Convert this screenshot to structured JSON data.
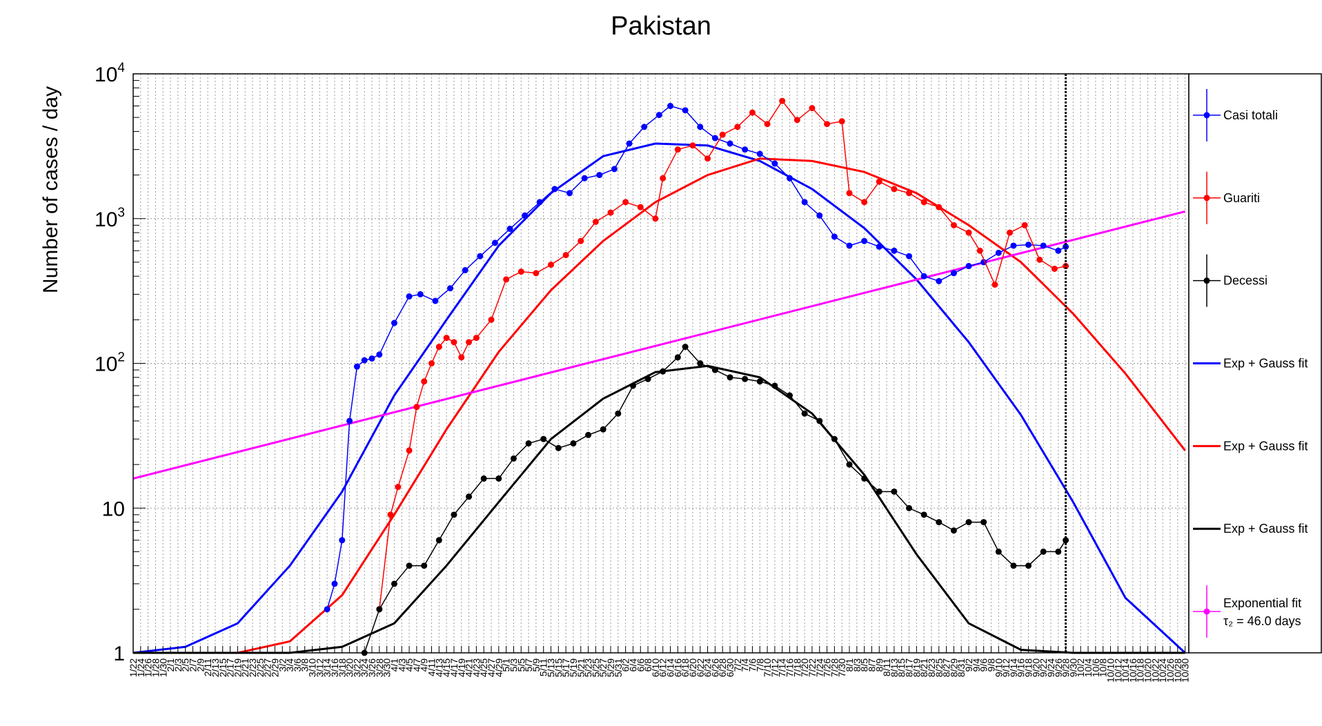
{
  "chart_data": {
    "type": "line",
    "title": "Pakistan",
    "ylabel": "Number of cases / day",
    "xlabel": "",
    "y_scale": "log",
    "ylim": [
      1,
      10000
    ],
    "y_ticks": [
      "1",
      "10",
      "10^2",
      "10^3",
      "10^4"
    ],
    "x_range": [
      "1/22",
      "10/31"
    ],
    "x_tick_labels": [
      "1/22",
      "1/24",
      "1/26",
      "1/28",
      "1/30",
      "2/1",
      "2/3",
      "2/5",
      "2/7",
      "2/9",
      "2/11",
      "2/13",
      "2/15",
      "2/17",
      "2/19",
      "2/21",
      "2/23",
      "2/25",
      "2/27",
      "2/29",
      "3/2",
      "3/4",
      "3/6",
      "3/8",
      "3/10",
      "3/12",
      "3/14",
      "3/16",
      "3/18",
      "3/20",
      "3/22",
      "3/24",
      "3/26",
      "3/28",
      "3/30",
      "4/1",
      "4/3",
      "4/5",
      "4/7",
      "4/9",
      "4/11",
      "4/13",
      "4/15",
      "4/17",
      "4/19",
      "4/21",
      "4/23",
      "4/25",
      "4/27",
      "4/29",
      "5/1",
      "5/3",
      "5/5",
      "5/7",
      "5/9",
      "5/11",
      "5/13",
      "5/15",
      "5/17",
      "5/19",
      "5/21",
      "5/23",
      "5/25",
      "5/27",
      "5/29",
      "5/31",
      "6/2",
      "6/4",
      "6/6",
      "6/8",
      "6/10",
      "6/12",
      "6/14",
      "6/16",
      "6/18",
      "6/20",
      "6/22",
      "6/24",
      "6/26",
      "6/28",
      "6/30",
      "7/2",
      "7/4",
      "7/6",
      "7/8",
      "7/10",
      "7/12",
      "7/14",
      "7/16",
      "7/18",
      "7/20",
      "7/22",
      "7/24",
      "7/26",
      "7/28",
      "7/30",
      "8/1",
      "8/3",
      "8/5",
      "8/7",
      "8/9",
      "8/11",
      "8/13",
      "8/15",
      "8/17",
      "8/19",
      "8/21",
      "8/23",
      "8/25",
      "8/27",
      "8/29",
      "8/31",
      "9/2",
      "9/4",
      "9/6",
      "9/8",
      "9/10",
      "9/12",
      "9/14",
      "9/16",
      "9/18",
      "9/20",
      "9/22",
      "9/24",
      "9/26",
      "9/28",
      "9/30",
      "10/2",
      "10/4",
      "10/6",
      "10/8",
      "10/10",
      "10/12",
      "10/14",
      "10/16",
      "10/18",
      "10/20",
      "10/22",
      "10/24",
      "10/26",
      "10/28",
      "10/30"
    ],
    "vertical_marker": "9/28",
    "grid": true,
    "legend_position": "right",
    "series": [
      {
        "name": "Casi totali",
        "kind": "data",
        "color": "#0000ff",
        "x": [
          "3/14",
          "3/16",
          "3/18",
          "3/20",
          "3/22",
          "3/24",
          "3/26",
          "3/28",
          "4/1",
          "4/5",
          "4/8",
          "4/12",
          "4/16",
          "4/20",
          "4/24",
          "4/28",
          "5/2",
          "5/6",
          "5/10",
          "5/14",
          "5/18",
          "5/22",
          "5/26",
          "5/30",
          "6/3",
          "6/7",
          "6/11",
          "6/14",
          "6/18",
          "6/22",
          "6/26",
          "6/30",
          "7/4",
          "7/8",
          "7/12",
          "7/16",
          "7/20",
          "7/24",
          "7/28",
          "8/1",
          "8/5",
          "8/9",
          "8/13",
          "8/17",
          "8/21",
          "8/25",
          "8/29",
          "9/2",
          "9/6",
          "9/10",
          "9/14",
          "9/18",
          "9/22",
          "9/26",
          "9/28"
        ],
        "y": [
          2,
          3,
          6,
          40,
          95,
          105,
          108,
          115,
          190,
          290,
          300,
          270,
          330,
          440,
          550,
          680,
          850,
          1050,
          1300,
          1600,
          1500,
          1900,
          2000,
          2200,
          3300,
          4300,
          5200,
          6000,
          5600,
          4300,
          3600,
          3300,
          3000,
          2800,
          2400,
          1900,
          1300,
          1050,
          750,
          650,
          700,
          640,
          600,
          550,
          400,
          370,
          420,
          470,
          500,
          580,
          650,
          660,
          650,
          600,
          640
        ]
      },
      {
        "name": "Guariti",
        "kind": "data",
        "color": "#ff0000",
        "x": [
          "3/28",
          "3/31",
          "4/2",
          "4/5",
          "4/7",
          "4/9",
          "4/11",
          "4/13",
          "4/15",
          "4/17",
          "4/19",
          "4/21",
          "4/23",
          "4/27",
          "5/1",
          "5/5",
          "5/9",
          "5/13",
          "5/17",
          "5/21",
          "5/25",
          "5/29",
          "6/2",
          "6/6",
          "6/10",
          "6/12",
          "6/16",
          "6/20",
          "6/24",
          "6/28",
          "7/2",
          "7/6",
          "7/10",
          "7/14",
          "7/18",
          "7/22",
          "7/26",
          "7/30",
          "8/1",
          "8/5",
          "8/9",
          "8/13",
          "8/17",
          "8/21",
          "8/25",
          "8/29",
          "9/2",
          "9/5",
          "9/9",
          "9/13",
          "9/17",
          "9/21",
          "9/25",
          "9/28"
        ],
        "y": [
          2,
          9,
          14,
          25,
          50,
          75,
          100,
          130,
          150,
          140,
          110,
          140,
          150,
          200,
          380,
          430,
          420,
          480,
          560,
          700,
          950,
          1100,
          1300,
          1200,
          1000,
          1900,
          3000,
          3200,
          2600,
          3800,
          4300,
          5400,
          4500,
          6500,
          4800,
          5800,
          4500,
          4700,
          1500,
          1300,
          1800,
          1600,
          1500,
          1300,
          1200,
          900,
          800,
          600,
          350,
          800,
          900,
          520,
          450,
          470
        ]
      },
      {
        "name": "Decessi",
        "kind": "data",
        "color": "#000000",
        "x": [
          "3/24",
          "3/28",
          "4/1",
          "4/5",
          "4/9",
          "4/13",
          "4/17",
          "4/21",
          "4/25",
          "4/29",
          "5/3",
          "5/7",
          "5/11",
          "5/15",
          "5/19",
          "5/23",
          "5/27",
          "5/31",
          "6/4",
          "6/8",
          "6/12",
          "6/16",
          "6/18",
          "6/22",
          "6/26",
          "6/30",
          "7/4",
          "7/8",
          "7/12",
          "7/16",
          "7/20",
          "7/24",
          "7/28",
          "8/1",
          "8/5",
          "8/9",
          "8/13",
          "8/17",
          "8/21",
          "8/25",
          "8/29",
          "9/2",
          "9/6",
          "9/10",
          "9/14",
          "9/18",
          "9/22",
          "9/26",
          "9/28"
        ],
        "y": [
          1,
          2,
          3,
          4,
          4,
          6,
          9,
          12,
          16,
          16,
          22,
          28,
          30,
          26,
          28,
          32,
          35,
          45,
          70,
          78,
          88,
          110,
          130,
          100,
          90,
          80,
          78,
          75,
          70,
          60,
          45,
          40,
          30,
          20,
          16,
          13,
          13,
          10,
          9,
          8,
          7,
          8,
          8,
          5,
          4,
          4,
          5,
          5,
          6
        ]
      },
      {
        "name": "Exp + Gauss fit",
        "kind": "fit",
        "color": "#0000ff",
        "x": [
          "1/22",
          "2/5",
          "2/19",
          "3/4",
          "3/18",
          "4/1",
          "4/15",
          "4/29",
          "5/13",
          "5/27",
          "6/10",
          "6/24",
          "7/8",
          "7/22",
          "8/5",
          "8/19",
          "9/2",
          "9/16",
          "9/30",
          "10/14",
          "10/30"
        ],
        "y": [
          1,
          1.1,
          1.6,
          4,
          13,
          60,
          200,
          650,
          1500,
          2700,
          3300,
          3200,
          2500,
          1600,
          860,
          380,
          140,
          44,
          11,
          2.4,
          1
        ]
      },
      {
        "name": "Exp + Gauss fit",
        "kind": "fit",
        "color": "#ff0000",
        "x": [
          "1/22",
          "2/5",
          "2/19",
          "3/4",
          "3/18",
          "4/1",
          "4/15",
          "4/29",
          "5/13",
          "5/27",
          "6/10",
          "6/24",
          "7/8",
          "7/22",
          "8/5",
          "8/19",
          "9/2",
          "9/16",
          "9/30",
          "10/14",
          "10/30"
        ],
        "y": [
          1,
          1,
          1,
          1.2,
          2.5,
          9,
          35,
          120,
          320,
          700,
          1300,
          2000,
          2600,
          2500,
          2100,
          1500,
          900,
          500,
          220,
          85,
          25
        ]
      },
      {
        "name": "Exp + Gauss fit",
        "kind": "fit",
        "color": "#000000",
        "x": [
          "1/22",
          "2/19",
          "3/4",
          "3/18",
          "4/1",
          "4/15",
          "4/29",
          "5/13",
          "5/27",
          "6/10",
          "6/24",
          "7/8",
          "7/22",
          "8/5",
          "8/19",
          "9/2",
          "9/16",
          "9/30",
          "10/30"
        ],
        "y": [
          1,
          1,
          1,
          1.1,
          1.6,
          4,
          11,
          30,
          57,
          87,
          96,
          80,
          45,
          17,
          4.8,
          1.6,
          1.05,
          1,
          1
        ]
      },
      {
        "name": "Exponential fit",
        "annotation": "τ₂ = 46.0 days",
        "kind": "fit",
        "color": "#ff00ff",
        "x": [
          "1/22",
          "10/30"
        ],
        "y": [
          16,
          1120
        ]
      }
    ]
  },
  "legend": [
    {
      "label": "Casi totali",
      "color": "#0000ff",
      "marker": "point"
    },
    {
      "label": "Guariti",
      "color": "#ff0000",
      "marker": "point"
    },
    {
      "label": "Decessi",
      "color": "#000000",
      "marker": "point"
    },
    {
      "label": "Exp + Gauss fit",
      "color": "#0000ff",
      "marker": "line"
    },
    {
      "label": "Exp + Gauss fit",
      "color": "#ff0000",
      "marker": "line"
    },
    {
      "label": "Exp + Gauss fit",
      "color": "#000000",
      "marker": "line"
    },
    {
      "label": "Exponential fit",
      "sublabel": "τ₂ = 46.0 days",
      "color": "#ff00ff",
      "marker": "point"
    }
  ]
}
